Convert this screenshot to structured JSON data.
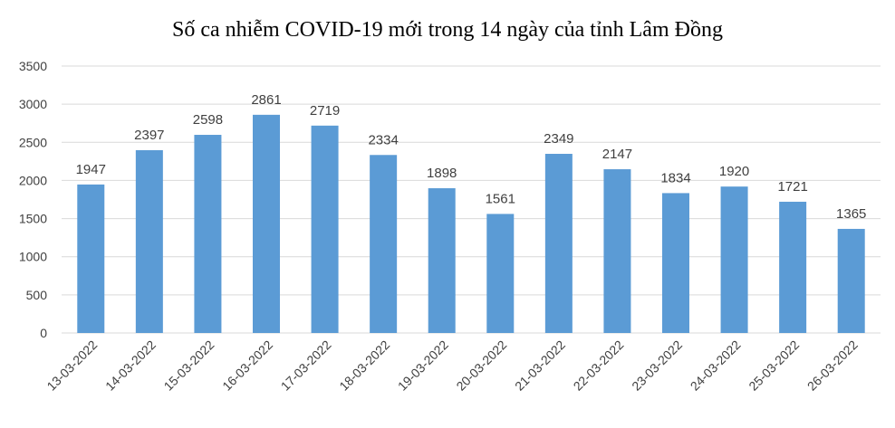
{
  "chart_data": {
    "type": "bar",
    "title": "Số ca nhiễm COVID-19 mới trong 14 ngày của tỉnh Lâm Đồng",
    "xlabel": "",
    "ylabel": "",
    "categories": [
      "13-03-2022",
      "14-03-2022",
      "15-03-2022",
      "16-03-2022",
      "17-03-2022",
      "18-03-2022",
      "19-03-2022",
      "20-03-2022",
      "21-03-2022",
      "22-03-2022",
      "23-03-2022",
      "24-03-2022",
      "25-03-2022",
      "26-03-2022"
    ],
    "values": [
      1947,
      2397,
      2598,
      2861,
      2719,
      2334,
      1898,
      1561,
      2349,
      2147,
      1834,
      1920,
      1721,
      1365
    ],
    "ylim": [
      0,
      3500
    ],
    "yticks": [
      0,
      500,
      1000,
      1500,
      2000,
      2500,
      3000,
      3500
    ],
    "grid": true,
    "legend": "none",
    "bar_color": "#5b9bd5",
    "grid_color": "#d9d9d9",
    "text_color": "#404040"
  }
}
